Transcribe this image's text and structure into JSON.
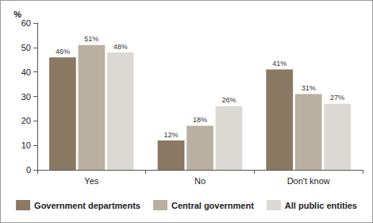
{
  "chart_data": {
    "type": "bar",
    "y_label": "%",
    "categories": [
      "Yes",
      "No",
      "Don't know"
    ],
    "series": [
      {
        "name": "Government departments",
        "color": "#8a7863",
        "values": [
          46,
          12,
          41
        ],
        "value_labels": [
          "46%",
          "12%",
          "41%"
        ]
      },
      {
        "name": "Central government",
        "color": "#b9b0a2",
        "values": [
          51,
          18,
          31
        ],
        "value_labels": [
          "51%",
          "18%",
          "31%"
        ]
      },
      {
        "name": "All public entities",
        "color": "#dcd9d4",
        "values": [
          48,
          26,
          27
        ],
        "value_labels": [
          "48%",
          "26%",
          "27%"
        ]
      }
    ],
    "ylim": [
      0,
      60
    ],
    "yticks": [
      0,
      10,
      20,
      30,
      40,
      50,
      60
    ],
    "grid": false,
    "legend": "bottom",
    "data_labels": true
  }
}
